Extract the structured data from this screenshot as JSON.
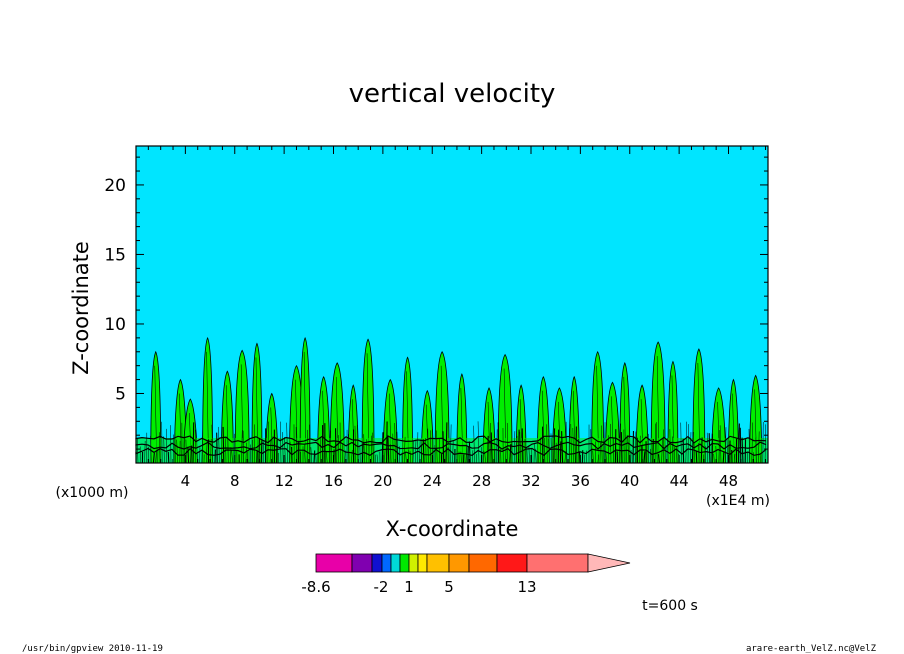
{
  "footer": {
    "left": "/usr/bin/gpview   2010-11-19",
    "right": "arare-earth_VelZ.nc@VelZ"
  },
  "time_label": "t=600 s",
  "chart_data": {
    "type": "heatmap",
    "title": "vertical velocity",
    "xlabel": "X-coordinate",
    "ylabel": "Z-coordinate",
    "x_unit_left": "(x1000 m)",
    "x_unit_right": "(x1E4 m)",
    "x_ticks": [
      "4",
      "8",
      "12",
      "16",
      "20",
      "24",
      "28",
      "32",
      "36",
      "40",
      "44",
      "48"
    ],
    "y_ticks": [
      "5",
      "10",
      "15",
      "20"
    ],
    "xlim": [
      0,
      51.2
    ],
    "ylim": [
      0,
      22.8
    ],
    "background_color": "#00e5ff",
    "contour_color": "#00ee00",
    "colorbar": {
      "tick_labels": [
        "-8.6",
        "-2",
        "1",
        "5",
        "13"
      ],
      "colors": [
        "#e800a8",
        "#8000b0",
        "#1010d0",
        "#0068ff",
        "#00d8d8",
        "#00e800",
        "#d0f000",
        "#ffe800",
        "#ffc000",
        "#ff9800",
        "#ff6800",
        "#ff1818",
        "#ff7070",
        "#ffb8b8"
      ]
    },
    "plumes": [
      {
        "x": 1.6,
        "top": 8.0
      },
      {
        "x": 3.6,
        "top": 6.0
      },
      {
        "x": 4.4,
        "top": 4.6
      },
      {
        "x": 5.8,
        "top": 9.0
      },
      {
        "x": 7.4,
        "top": 6.6
      },
      {
        "x": 8.6,
        "top": 8.1
      },
      {
        "x": 9.8,
        "top": 8.6
      },
      {
        "x": 11.0,
        "top": 5.0
      },
      {
        "x": 13.0,
        "top": 7.0
      },
      {
        "x": 13.7,
        "top": 9.0
      },
      {
        "x": 15.2,
        "top": 6.2
      },
      {
        "x": 16.3,
        "top": 7.2
      },
      {
        "x": 17.6,
        "top": 5.6
      },
      {
        "x": 18.8,
        "top": 8.9
      },
      {
        "x": 20.6,
        "top": 6.0
      },
      {
        "x": 22.0,
        "top": 7.6
      },
      {
        "x": 23.6,
        "top": 5.2
      },
      {
        "x": 24.8,
        "top": 8.0
      },
      {
        "x": 26.4,
        "top": 6.4
      },
      {
        "x": 28.6,
        "top": 5.4
      },
      {
        "x": 29.9,
        "top": 7.8
      },
      {
        "x": 31.2,
        "top": 5.6
      },
      {
        "x": 33.0,
        "top": 6.2
      },
      {
        "x": 34.3,
        "top": 5.4
      },
      {
        "x": 35.5,
        "top": 6.2
      },
      {
        "x": 37.4,
        "top": 8.0
      },
      {
        "x": 38.6,
        "top": 5.8
      },
      {
        "x": 39.6,
        "top": 7.2
      },
      {
        "x": 41.0,
        "top": 5.6
      },
      {
        "x": 42.3,
        "top": 8.7
      },
      {
        "x": 43.5,
        "top": 7.3
      },
      {
        "x": 45.6,
        "top": 8.2
      },
      {
        "x": 47.2,
        "top": 5.4
      },
      {
        "x": 48.4,
        "top": 6.0
      },
      {
        "x": 50.2,
        "top": 6.3
      }
    ]
  }
}
